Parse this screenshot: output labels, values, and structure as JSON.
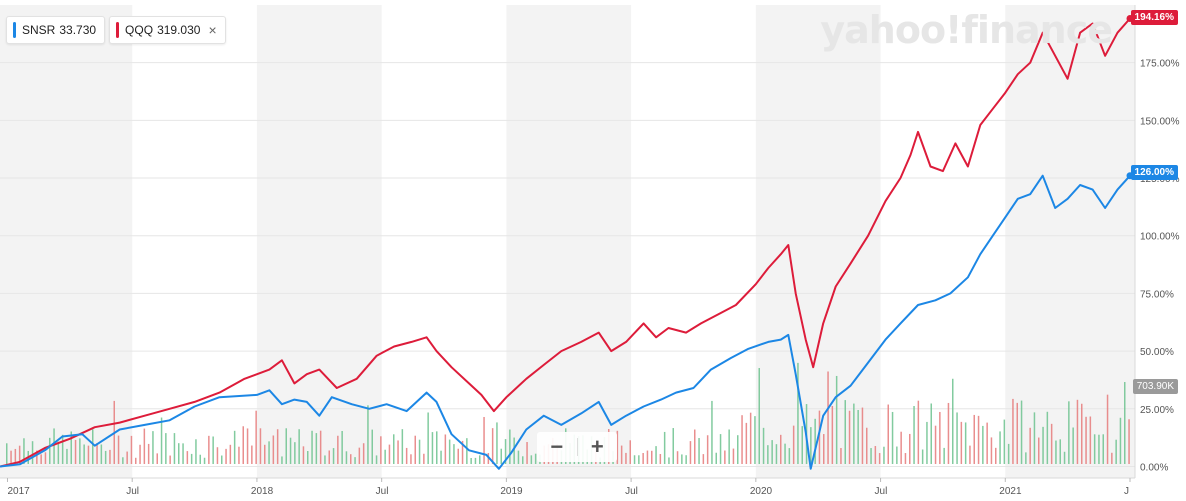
{
  "watermark": "yahoo!finance",
  "legend": [
    {
      "symbol": "SNSR",
      "price": "33.730",
      "color": "#1c87e5"
    },
    {
      "symbol": "QQQ",
      "price": "319.030",
      "color": "#dd1c3a",
      "close": "×"
    }
  ],
  "zoom": {
    "minus": "−",
    "plus": "+"
  },
  "flags": {
    "qqq_label": "194.16%",
    "snsr_label": "126.00%",
    "volume_label": "703.90K"
  },
  "chart_data": {
    "type": "line",
    "x_ticks": [
      "2017",
      "Jul",
      "2018",
      "Jul",
      "2019",
      "Jul",
      "2020",
      "Jul",
      "2021",
      "J"
    ],
    "y_ticks": [
      "175.00%",
      "150.00%",
      "125.00%",
      "100.00%",
      "75.00%",
      "50.00%",
      "25.00%",
      "0.00%"
    ],
    "y_tick_values": [
      175,
      150,
      125,
      100,
      75,
      50,
      25,
      0
    ],
    "ylim": [
      -5,
      200
    ],
    "x_range": [
      2016.97,
      2021.52
    ],
    "series": [
      {
        "name": "QQQ",
        "color": "#dd1c3a",
        "points": [
          [
            2016.97,
            0
          ],
          [
            2017.05,
            2
          ],
          [
            2017.15,
            8
          ],
          [
            2017.25,
            12
          ],
          [
            2017.35,
            17
          ],
          [
            2017.45,
            19
          ],
          [
            2017.55,
            22
          ],
          [
            2017.65,
            25
          ],
          [
            2017.75,
            28
          ],
          [
            2017.85,
            32
          ],
          [
            2017.95,
            38
          ],
          [
            2018.05,
            42
          ],
          [
            2018.1,
            46
          ],
          [
            2018.15,
            36
          ],
          [
            2018.2,
            40
          ],
          [
            2018.25,
            42
          ],
          [
            2018.32,
            34
          ],
          [
            2018.4,
            38
          ],
          [
            2018.48,
            48
          ],
          [
            2018.55,
            52
          ],
          [
            2018.62,
            54
          ],
          [
            2018.68,
            56
          ],
          [
            2018.72,
            50
          ],
          [
            2018.78,
            43
          ],
          [
            2018.85,
            36
          ],
          [
            2018.9,
            31
          ],
          [
            2018.95,
            24
          ],
          [
            2019.0,
            30
          ],
          [
            2019.08,
            38
          ],
          [
            2019.15,
            44
          ],
          [
            2019.22,
            50
          ],
          [
            2019.3,
            54
          ],
          [
            2019.37,
            58
          ],
          [
            2019.42,
            50
          ],
          [
            2019.48,
            54
          ],
          [
            2019.55,
            62
          ],
          [
            2019.6,
            56
          ],
          [
            2019.65,
            60
          ],
          [
            2019.72,
            58
          ],
          [
            2019.78,
            62
          ],
          [
            2019.85,
            66
          ],
          [
            2019.92,
            70
          ],
          [
            2020.0,
            79
          ],
          [
            2020.05,
            86
          ],
          [
            2020.1,
            92
          ],
          [
            2020.13,
            96
          ],
          [
            2020.16,
            75
          ],
          [
            2020.2,
            55
          ],
          [
            2020.23,
            43
          ],
          [
            2020.27,
            62
          ],
          [
            2020.32,
            78
          ],
          [
            2020.38,
            88
          ],
          [
            2020.45,
            100
          ],
          [
            2020.52,
            115
          ],
          [
            2020.58,
            125
          ],
          [
            2020.62,
            135
          ],
          [
            2020.65,
            145
          ],
          [
            2020.7,
            130
          ],
          [
            2020.75,
            128
          ],
          [
            2020.8,
            140
          ],
          [
            2020.85,
            130
          ],
          [
            2020.9,
            148
          ],
          [
            2020.95,
            155
          ],
          [
            2021.0,
            162
          ],
          [
            2021.05,
            170
          ],
          [
            2021.1,
            175
          ],
          [
            2021.15,
            188
          ],
          [
            2021.2,
            178
          ],
          [
            2021.25,
            168
          ],
          [
            2021.3,
            188
          ],
          [
            2021.35,
            192
          ],
          [
            2021.4,
            178
          ],
          [
            2021.45,
            188
          ],
          [
            2021.5,
            194.16
          ]
        ]
      },
      {
        "name": "SNSR",
        "color": "#1c87e5",
        "points": [
          [
            2016.97,
            0
          ],
          [
            2017.05,
            1
          ],
          [
            2017.15,
            7
          ],
          [
            2017.22,
            13
          ],
          [
            2017.3,
            14
          ],
          [
            2017.35,
            9
          ],
          [
            2017.45,
            16
          ],
          [
            2017.55,
            18
          ],
          [
            2017.65,
            20
          ],
          [
            2017.75,
            26
          ],
          [
            2017.85,
            30
          ],
          [
            2018.0,
            31
          ],
          [
            2018.05,
            33
          ],
          [
            2018.1,
            27
          ],
          [
            2018.15,
            29
          ],
          [
            2018.2,
            28
          ],
          [
            2018.25,
            22
          ],
          [
            2018.3,
            30
          ],
          [
            2018.38,
            27
          ],
          [
            2018.45,
            25
          ],
          [
            2018.52,
            27
          ],
          [
            2018.6,
            24
          ],
          [
            2018.68,
            32
          ],
          [
            2018.72,
            28
          ],
          [
            2018.78,
            14
          ],
          [
            2018.85,
            7
          ],
          [
            2018.92,
            5
          ],
          [
            2018.97,
            -1
          ],
          [
            2019.02,
            6
          ],
          [
            2019.08,
            16
          ],
          [
            2019.15,
            22
          ],
          [
            2019.22,
            18
          ],
          [
            2019.3,
            23
          ],
          [
            2019.37,
            28
          ],
          [
            2019.42,
            18
          ],
          [
            2019.48,
            22
          ],
          [
            2019.55,
            26
          ],
          [
            2019.62,
            29
          ],
          [
            2019.68,
            32
          ],
          [
            2019.75,
            34
          ],
          [
            2019.82,
            42
          ],
          [
            2019.9,
            47
          ],
          [
            2019.97,
            51
          ],
          [
            2020.05,
            54
          ],
          [
            2020.1,
            55
          ],
          [
            2020.13,
            57
          ],
          [
            2020.16,
            40
          ],
          [
            2020.2,
            15
          ],
          [
            2020.22,
            -1
          ],
          [
            2020.27,
            22
          ],
          [
            2020.32,
            30
          ],
          [
            2020.38,
            35
          ],
          [
            2020.45,
            45
          ],
          [
            2020.52,
            55
          ],
          [
            2020.58,
            62
          ],
          [
            2020.65,
            70
          ],
          [
            2020.72,
            72
          ],
          [
            2020.78,
            75
          ],
          [
            2020.85,
            82
          ],
          [
            2020.9,
            92
          ],
          [
            2020.95,
            100
          ],
          [
            2021.0,
            108
          ],
          [
            2021.05,
            116
          ],
          [
            2021.1,
            118
          ],
          [
            2021.15,
            126
          ],
          [
            2021.2,
            112
          ],
          [
            2021.25,
            116
          ],
          [
            2021.3,
            122
          ],
          [
            2021.35,
            120
          ],
          [
            2021.4,
            112
          ],
          [
            2021.45,
            120
          ],
          [
            2021.5,
            126
          ]
        ]
      }
    ]
  }
}
